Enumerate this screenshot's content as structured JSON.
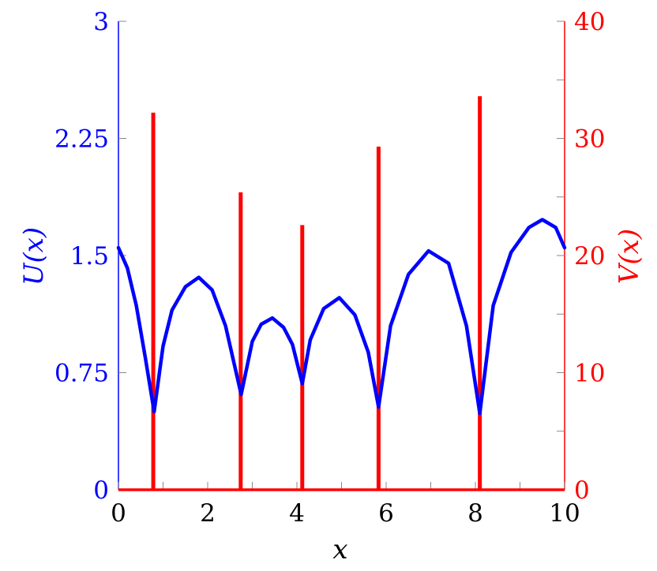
{
  "chart_data": {
    "type": "line",
    "xlabel": "x",
    "ylabel_left": "U(x)",
    "ylabel_right": "V(x)",
    "xlim": [
      0,
      10
    ],
    "ylim_left": [
      0,
      3
    ],
    "ylim_right": [
      0,
      40
    ],
    "x_ticks": [
      "0",
      "2",
      "4",
      "6",
      "8",
      "10"
    ],
    "y_left_ticks": [
      "0",
      "0.75",
      "1.5",
      "2.25",
      "3"
    ],
    "y_right_ticks": [
      "0",
      "10",
      "20",
      "30",
      "40"
    ],
    "colors": {
      "left": "#0000ff",
      "right": "#ff0000"
    },
    "series": [
      {
        "axis": "left",
        "color": "#0000ff",
        "x": [
          0,
          0.2,
          0.4,
          0.6,
          0.8,
          1.0,
          1.2,
          1.5,
          1.8,
          2.1,
          2.4,
          2.75,
          3.0,
          3.2,
          3.45,
          3.7,
          3.9,
          4.12,
          4.3,
          4.6,
          4.95,
          5.3,
          5.6,
          5.83,
          6.1,
          6.5,
          6.95,
          7.4,
          7.8,
          8.1,
          8.4,
          8.8,
          9.2,
          9.5,
          9.8,
          10
        ],
        "y": [
          1.55,
          1.42,
          1.18,
          0.85,
          0.5,
          0.92,
          1.15,
          1.3,
          1.36,
          1.28,
          1.05,
          0.61,
          0.95,
          1.06,
          1.1,
          1.04,
          0.93,
          0.68,
          0.96,
          1.16,
          1.23,
          1.12,
          0.88,
          0.53,
          1.05,
          1.38,
          1.53,
          1.45,
          1.05,
          0.49,
          1.18,
          1.52,
          1.68,
          1.73,
          1.68,
          1.55
        ]
      },
      {
        "axis": "right",
        "color": "#ff0000",
        "spikes": [
          {
            "x": 0.78,
            "height": 32.2
          },
          {
            "x": 2.74,
            "height": 25.4
          },
          {
            "x": 4.12,
            "height": 22.6
          },
          {
            "x": 5.83,
            "height": 29.3
          },
          {
            "x": 8.1,
            "height": 33.6
          }
        ]
      }
    ]
  }
}
